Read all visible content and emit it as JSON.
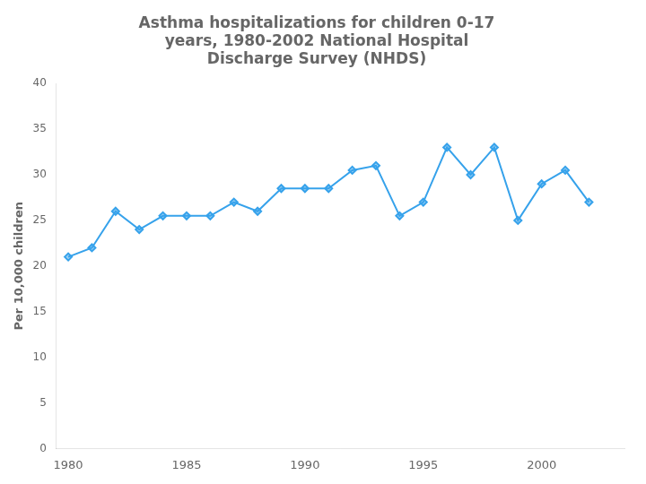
{
  "chart_data": {
    "type": "line",
    "title": "Asthma hospitalizations for children 0-17\nyears, 1980-2002 National Hospital\nDischarge Survey (NHDS)",
    "ylabel": "Per 10,000 children",
    "x": [
      1980,
      1981,
      1982,
      1983,
      1984,
      1985,
      1986,
      1987,
      1988,
      1989,
      1990,
      1991,
      1992,
      1993,
      1994,
      1995,
      1996,
      1997,
      1998,
      1999,
      2000,
      2001,
      2002
    ],
    "values": [
      21,
      22,
      26,
      24,
      25.5,
      25.5,
      25.5,
      27,
      26,
      28.5,
      28.5,
      28.5,
      30.5,
      31,
      25.5,
      27,
      33,
      30,
      33,
      25,
      29,
      30.5,
      27
    ],
    "xlim": [
      1979.5,
      2003.5
    ],
    "xticks": [
      1980,
      1985,
      1990,
      1995,
      2000
    ],
    "ylim": [
      0,
      40
    ],
    "yticks": [
      0,
      5,
      10,
      15,
      20,
      25,
      30,
      35,
      40
    ],
    "grid": false,
    "marker": "diamond"
  }
}
